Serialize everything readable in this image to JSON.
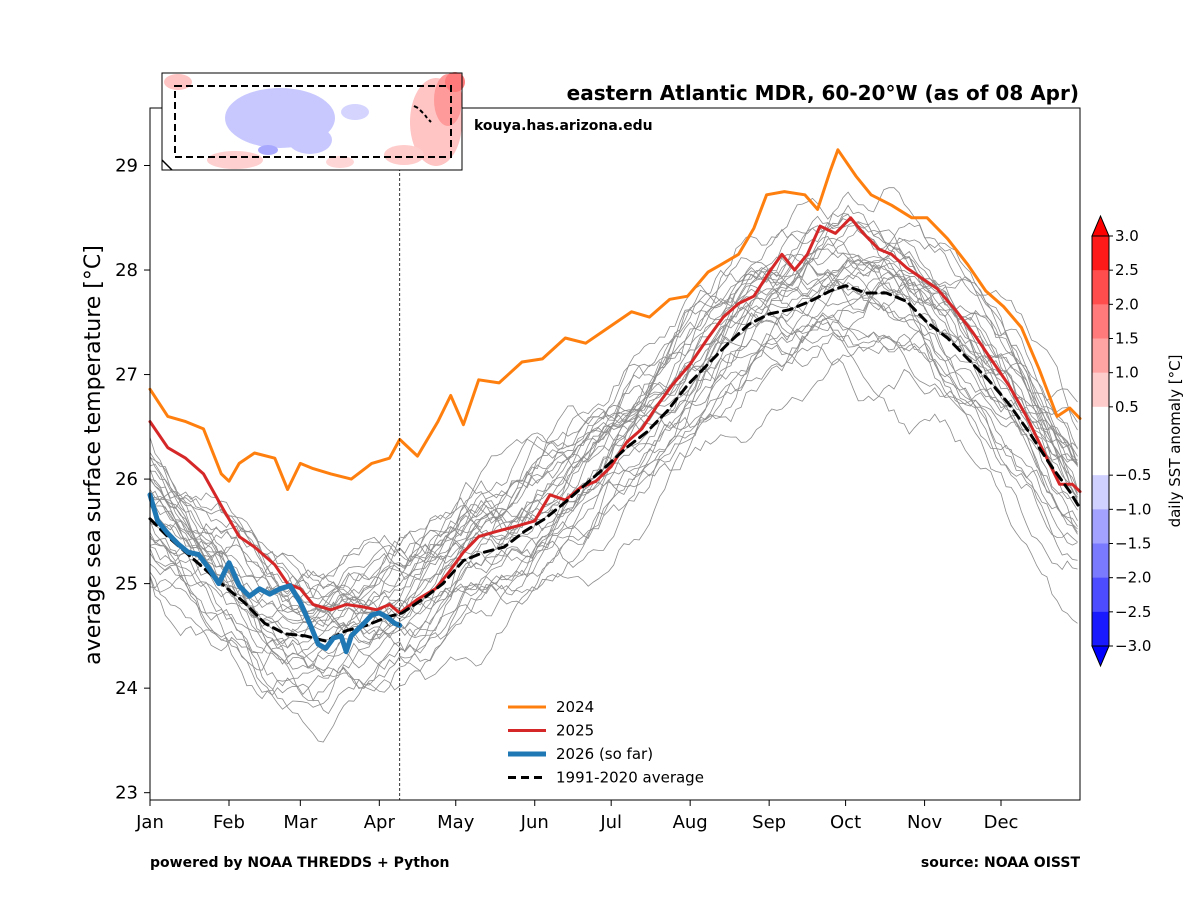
{
  "chart_data": {
    "type": "line",
    "title": "eastern Atlantic MDR, 60-20°W (as of 08 Apr)",
    "ylabel": "average sea surface temperature [°C]",
    "xlabel": "",
    "ylim": [
      22.93,
      29.55
    ],
    "xlim_day": [
      1,
      366
    ],
    "yticks": [
      23,
      24,
      25,
      26,
      27,
      28,
      29
    ],
    "months": [
      {
        "label": "Jan",
        "day": 1
      },
      {
        "label": "Feb",
        "day": 32
      },
      {
        "label": "Mar",
        "day": 60
      },
      {
        "label": "Apr",
        "day": 91
      },
      {
        "label": "May",
        "day": 121
      },
      {
        "label": "Jun",
        "day": 152
      },
      {
        "label": "Jul",
        "day": 182
      },
      {
        "label": "Aug",
        "day": 213
      },
      {
        "label": "Sep",
        "day": 244
      },
      {
        "label": "Oct",
        "day": 274
      },
      {
        "label": "Nov",
        "day": 305
      },
      {
        "label": "Dec",
        "day": 335
      }
    ],
    "current_day": 99,
    "series": [
      {
        "name": "2024",
        "color": "#ff7f0e",
        "width": 3,
        "dash": "",
        "points": [
          [
            1,
            26.86
          ],
          [
            8,
            26.6
          ],
          [
            15,
            26.55
          ],
          [
            22,
            26.48
          ],
          [
            29,
            26.05
          ],
          [
            32,
            25.98
          ],
          [
            36,
            26.15
          ],
          [
            42,
            26.25
          ],
          [
            50,
            26.2
          ],
          [
            55,
            25.9
          ],
          [
            60,
            26.15
          ],
          [
            65,
            26.1
          ],
          [
            72,
            26.05
          ],
          [
            80,
            26.0
          ],
          [
            88,
            26.15
          ],
          [
            95,
            26.2
          ],
          [
            99,
            26.38
          ],
          [
            106,
            26.22
          ],
          [
            114,
            26.55
          ],
          [
            119,
            26.8
          ],
          [
            124,
            26.52
          ],
          [
            130,
            26.95
          ],
          [
            138,
            26.92
          ],
          [
            147,
            27.12
          ],
          [
            155,
            27.15
          ],
          [
            164,
            27.35
          ],
          [
            172,
            27.3
          ],
          [
            181,
            27.45
          ],
          [
            190,
            27.6
          ],
          [
            197,
            27.55
          ],
          [
            205,
            27.72
          ],
          [
            212,
            27.75
          ],
          [
            220,
            27.98
          ],
          [
            225,
            28.05
          ],
          [
            232,
            28.15
          ],
          [
            238,
            28.4
          ],
          [
            243,
            28.72
          ],
          [
            250,
            28.75
          ],
          [
            258,
            28.72
          ],
          [
            263,
            28.58
          ],
          [
            268,
            28.95
          ],
          [
            271,
            29.15
          ],
          [
            278,
            28.9
          ],
          [
            284,
            28.72
          ],
          [
            292,
            28.62
          ],
          [
            300,
            28.5
          ],
          [
            306,
            28.5
          ],
          [
            314,
            28.3
          ],
          [
            322,
            28.05
          ],
          [
            329,
            27.8
          ],
          [
            336,
            27.65
          ],
          [
            343,
            27.45
          ],
          [
            350,
            27.05
          ],
          [
            357,
            26.6
          ],
          [
            362,
            26.68
          ],
          [
            366,
            26.58
          ]
        ]
      },
      {
        "name": "2025",
        "color": "#d62728",
        "width": 3,
        "dash": "",
        "points": [
          [
            1,
            26.55
          ],
          [
            8,
            26.3
          ],
          [
            15,
            26.2
          ],
          [
            22,
            26.05
          ],
          [
            30,
            25.7
          ],
          [
            36,
            25.45
          ],
          [
            42,
            25.35
          ],
          [
            50,
            25.18
          ],
          [
            55,
            25.0
          ],
          [
            60,
            24.95
          ],
          [
            65,
            24.8
          ],
          [
            72,
            24.75
          ],
          [
            78,
            24.8
          ],
          [
            84,
            24.78
          ],
          [
            90,
            24.75
          ],
          [
            95,
            24.8
          ],
          [
            99,
            24.72
          ],
          [
            106,
            24.85
          ],
          [
            113,
            24.95
          ],
          [
            118,
            25.1
          ],
          [
            124,
            25.3
          ],
          [
            130,
            25.45
          ],
          [
            137,
            25.5
          ],
          [
            145,
            25.55
          ],
          [
            152,
            25.6
          ],
          [
            158,
            25.85
          ],
          [
            164,
            25.8
          ],
          [
            170,
            25.92
          ],
          [
            176,
            25.98
          ],
          [
            182,
            26.12
          ],
          [
            188,
            26.35
          ],
          [
            194,
            26.48
          ],
          [
            200,
            26.7
          ],
          [
            206,
            26.9
          ],
          [
            213,
            27.1
          ],
          [
            220,
            27.35
          ],
          [
            226,
            27.55
          ],
          [
            232,
            27.68
          ],
          [
            238,
            27.75
          ],
          [
            244,
            27.98
          ],
          [
            249,
            28.15
          ],
          [
            254,
            28.0
          ],
          [
            259,
            28.15
          ],
          [
            264,
            28.42
          ],
          [
            270,
            28.35
          ],
          [
            276,
            28.5
          ],
          [
            281,
            28.35
          ],
          [
            287,
            28.2
          ],
          [
            292,
            28.15
          ],
          [
            298,
            28.02
          ],
          [
            304,
            27.92
          ],
          [
            310,
            27.82
          ],
          [
            317,
            27.62
          ],
          [
            324,
            27.4
          ],
          [
            331,
            27.15
          ],
          [
            338,
            26.9
          ],
          [
            345,
            26.6
          ],
          [
            352,
            26.25
          ],
          [
            358,
            25.95
          ],
          [
            363,
            25.95
          ],
          [
            366,
            25.88
          ]
        ]
      },
      {
        "name": "2026 (so far)",
        "color": "#1f77b4",
        "width": 5,
        "dash": "",
        "points": [
          [
            1,
            25.85
          ],
          [
            4,
            25.6
          ],
          [
            8,
            25.48
          ],
          [
            12,
            25.38
          ],
          [
            16,
            25.3
          ],
          [
            20,
            25.28
          ],
          [
            24,
            25.15
          ],
          [
            28,
            25.0
          ],
          [
            32,
            25.2
          ],
          [
            36,
            24.98
          ],
          [
            40,
            24.88
          ],
          [
            44,
            24.95
          ],
          [
            48,
            24.9
          ],
          [
            52,
            24.95
          ],
          [
            56,
            24.98
          ],
          [
            60,
            24.82
          ],
          [
            64,
            24.6
          ],
          [
            67,
            24.42
          ],
          [
            70,
            24.38
          ],
          [
            73,
            24.48
          ],
          [
            76,
            24.5
          ],
          [
            78,
            24.35
          ],
          [
            80,
            24.5
          ],
          [
            82,
            24.55
          ],
          [
            85,
            24.62
          ],
          [
            88,
            24.7
          ],
          [
            91,
            24.72
          ],
          [
            94,
            24.68
          ],
          [
            97,
            24.62
          ],
          [
            99,
            24.6
          ]
        ]
      },
      {
        "name": "1991-2020 average",
        "color": "#000000",
        "width": 3,
        "dash": "9,6",
        "points": [
          [
            1,
            25.62
          ],
          [
            8,
            25.45
          ],
          [
            15,
            25.3
          ],
          [
            22,
            25.15
          ],
          [
            30,
            24.98
          ],
          [
            38,
            24.82
          ],
          [
            46,
            24.62
          ],
          [
            54,
            24.52
          ],
          [
            62,
            24.5
          ],
          [
            70,
            24.45
          ],
          [
            78,
            24.55
          ],
          [
            86,
            24.6
          ],
          [
            94,
            24.68
          ],
          [
            100,
            24.72
          ],
          [
            108,
            24.85
          ],
          [
            116,
            25.0
          ],
          [
            124,
            25.22
          ],
          [
            132,
            25.3
          ],
          [
            140,
            25.35
          ],
          [
            148,
            25.5
          ],
          [
            156,
            25.62
          ],
          [
            164,
            25.78
          ],
          [
            172,
            25.95
          ],
          [
            180,
            26.12
          ],
          [
            188,
            26.3
          ],
          [
            196,
            26.45
          ],
          [
            204,
            26.65
          ],
          [
            212,
            26.9
          ],
          [
            220,
            27.1
          ],
          [
            228,
            27.3
          ],
          [
            236,
            27.48
          ],
          [
            244,
            27.58
          ],
          [
            252,
            27.62
          ],
          [
            260,
            27.7
          ],
          [
            268,
            27.8
          ],
          [
            274,
            27.85
          ],
          [
            282,
            27.78
          ],
          [
            290,
            27.78
          ],
          [
            298,
            27.7
          ],
          [
            306,
            27.5
          ],
          [
            314,
            27.35
          ],
          [
            322,
            27.15
          ],
          [
            330,
            26.95
          ],
          [
            338,
            26.72
          ],
          [
            346,
            26.45
          ],
          [
            354,
            26.15
          ],
          [
            362,
            25.88
          ],
          [
            366,
            25.72
          ]
        ]
      }
    ],
    "legend": {
      "location": "lower-center",
      "entries": [
        "2024",
        "2025",
        "2026 (so far)",
        "1991-2020 average"
      ]
    },
    "background_years": {
      "color": "#8c8c8c",
      "description_count": 33,
      "jan_range": [
        24.6,
        26.05
      ],
      "spring_min_range": [
        23.3,
        25.0
      ],
      "fall_peak_range": [
        27.3,
        29.3
      ],
      "dec_range": [
        24.6,
        26.3
      ]
    },
    "colorbar": {
      "label": "daily SST anomaly [°C]",
      "ticks": [
        3.0,
        2.5,
        2.0,
        1.5,
        1.0,
        0.5,
        -0.5,
        -1.0,
        -1.5,
        -2.0,
        -2.5,
        -3.0
      ],
      "tick_labels": [
        "3.0",
        "2.5",
        "2.0",
        "1.5",
        "1.0",
        "0.5",
        "−0.5",
        "−1.0",
        "−1.5",
        "−2.0",
        "−2.5",
        "−3.0"
      ],
      "bands": [
        {
          "from": 2.5,
          "to": 3.0,
          "color": "#ff1a1a"
        },
        {
          "from": 2.0,
          "to": 2.5,
          "color": "#ff4d4d"
        },
        {
          "from": 1.5,
          "to": 2.0,
          "color": "#ff7a7a"
        },
        {
          "from": 1.0,
          "to": 1.5,
          "color": "#ffa3a3"
        },
        {
          "from": 0.5,
          "to": 1.0,
          "color": "#ffcccc"
        },
        {
          "from": -0.5,
          "to": 0.5,
          "color": "#ffffff"
        },
        {
          "from": -1.0,
          "to": -0.5,
          "color": "#d1d1ff"
        },
        {
          "from": -1.5,
          "to": -1.0,
          "color": "#a3a3ff"
        },
        {
          "from": -2.0,
          "to": -1.5,
          "color": "#7a7aff"
        },
        {
          "from": -2.5,
          "to": -2.0,
          "color": "#4d4dff"
        },
        {
          "from": -3.0,
          "to": -2.5,
          "color": "#1a1aff"
        }
      ],
      "extend_top_color": "#ff0000",
      "extend_bottom_color": "#0000ff"
    }
  },
  "credits": {
    "website": "kouya.has.arizona.edu",
    "powered_by": "powered by NOAA THREDDS + Python",
    "source": "source: NOAA OISST"
  }
}
